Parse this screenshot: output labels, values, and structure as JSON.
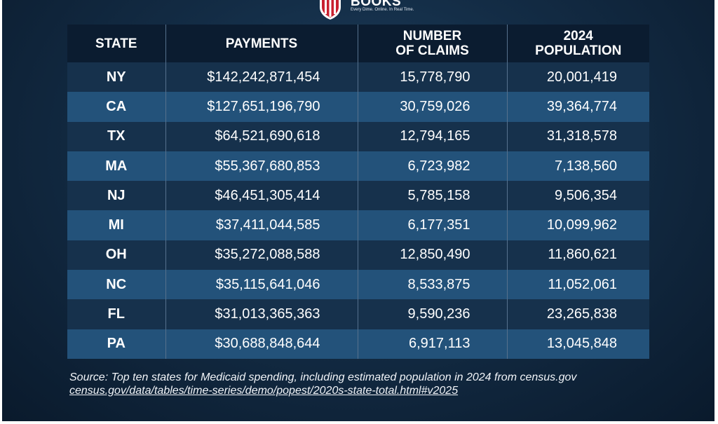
{
  "logo": {
    "name": "BOOKS",
    "tagline": "Every Dime. Online. In Real Time."
  },
  "chart_data": {
    "type": "table",
    "columns": [
      "STATE",
      "PAYMENTS",
      "NUMBER OF CLAIMS",
      "2024 POPULATION"
    ],
    "header_lines": [
      [
        "STATE"
      ],
      [
        "PAYMENTS"
      ],
      [
        "NUMBER",
        "OF CLAIMS"
      ],
      [
        "2024",
        "POPULATION"
      ]
    ],
    "rows": [
      [
        "NY",
        "$142,242,871,454",
        "15,778,790",
        "20,001,419"
      ],
      [
        "CA",
        "$127,651,196,790",
        "30,759,026",
        "39,364,774"
      ],
      [
        "TX",
        "$64,521,690,618",
        "12,794,165",
        "31,318,578"
      ],
      [
        "MA",
        "$55,367,680,853",
        "6,723,982",
        "7,138,560"
      ],
      [
        "NJ",
        "$46,451,305,414",
        "5,785,158",
        "9,506,354"
      ],
      [
        "MI",
        "$37,411,044,585",
        "6,177,351",
        "10,099,962"
      ],
      [
        "OH",
        "$35,272,088,588",
        "12,850,490",
        "11,860,621"
      ],
      [
        "NC",
        "$35,115,641,046",
        "8,533,875",
        "11,052,061"
      ],
      [
        "FL",
        "$31,013,365,363",
        "9,590,236",
        "23,265,838"
      ],
      [
        "PA",
        "$30,688,848,644",
        "6,917,113",
        "13,045,848"
      ]
    ]
  },
  "footer": {
    "source": "Source: Top ten states for Medicaid spending, including estimated population in 2024 from census.gov",
    "link": "census.gov/data/tables/time-series/demo/popest/2020s-state-total.html#v2025"
  },
  "colors": {
    "header_bg": "#0b1c30",
    "row_dark": "#16314c",
    "row_light": "#23527a",
    "shield_red": "#c8202f",
    "text": "#ffffff"
  }
}
